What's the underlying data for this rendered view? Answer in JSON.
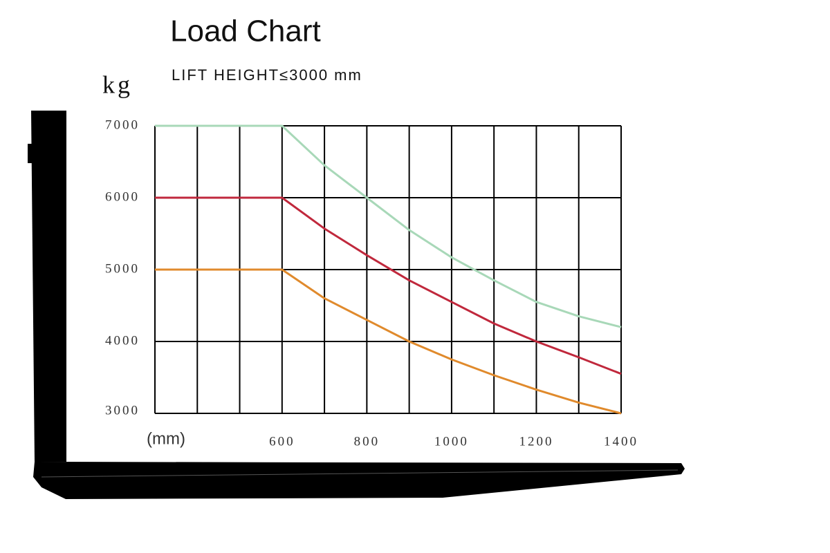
{
  "chart_data": {
    "type": "line",
    "title": "Load Chart",
    "subtitle": "LIFT HEIGHT≤3000 mm",
    "y_label": "kg",
    "x_label": "(mm)",
    "x": [
      300,
      400,
      500,
      600,
      700,
      800,
      900,
      1000,
      1100,
      1200,
      1300,
      1400
    ],
    "series": [
      {
        "color": "#a8d8b8",
        "values": [
          7000,
          7000,
          7000,
          7000,
          6450,
          6000,
          5550,
          5170,
          4850,
          4550,
          4350,
          4200
        ]
      },
      {
        "color": "#c0283c",
        "values": [
          6000,
          6000,
          6000,
          6000,
          5570,
          5200,
          4850,
          4550,
          4250,
          4000,
          3780,
          3550
        ]
      },
      {
        "color": "#e08a2c",
        "values": [
          5000,
          5000,
          5000,
          5000,
          4600,
          4300,
          4000,
          3750,
          3530,
          3330,
          3150,
          3000
        ]
      }
    ],
    "xlim": [
      300,
      1400
    ],
    "xticks": [
      600,
      800,
      1000,
      1200,
      1400
    ],
    "xgrid": [
      300,
      400,
      500,
      600,
      700,
      800,
      900,
      1000,
      1100,
      1200,
      1300,
      1400
    ],
    "ylim": [
      3000,
      7000
    ],
    "yticks": [
      3000,
      4000,
      5000,
      6000,
      7000
    ],
    "grid": true
  }
}
